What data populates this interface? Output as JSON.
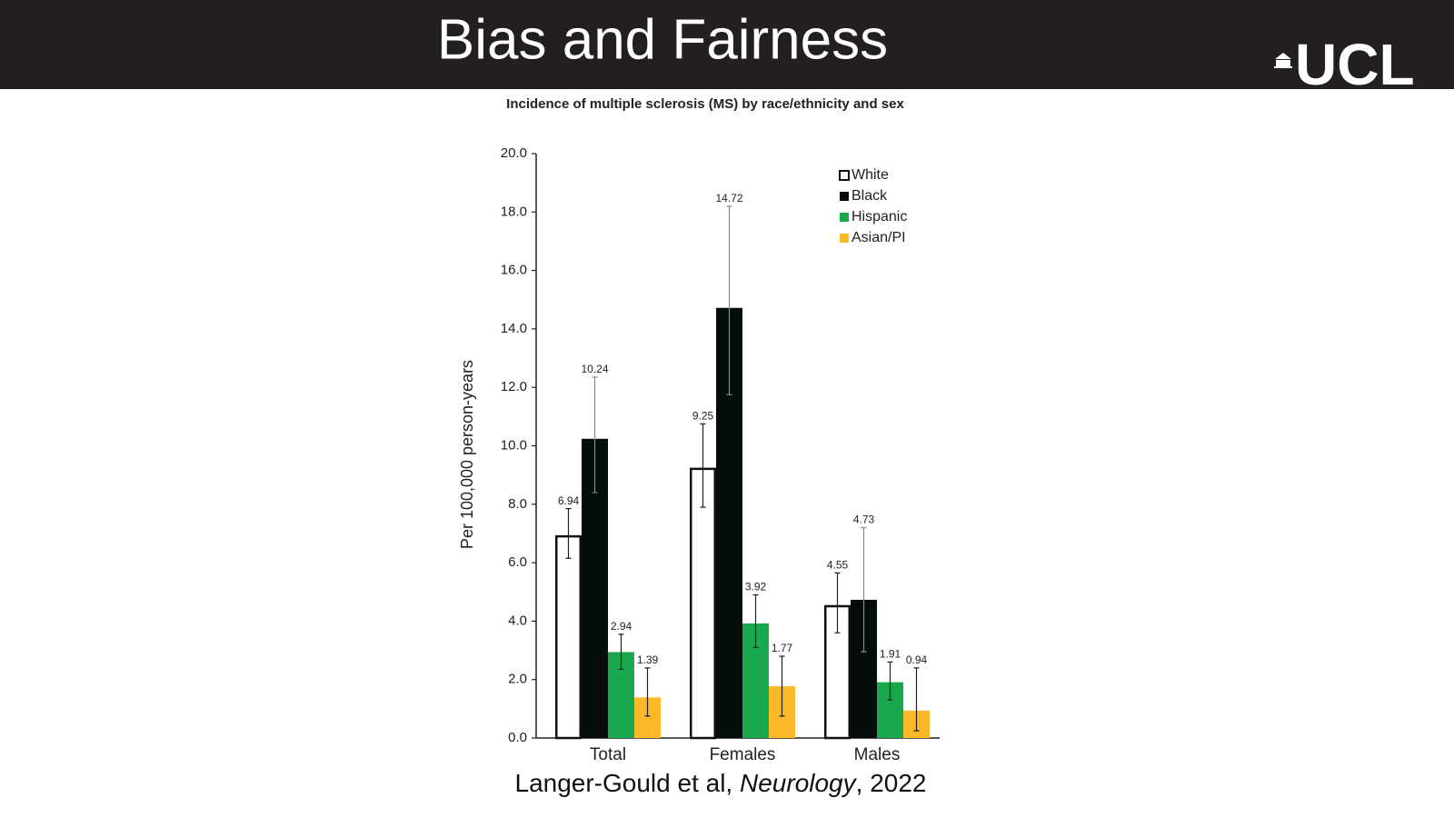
{
  "header": {
    "title": "Bias and Fairness",
    "logo": "UCL"
  },
  "citation": {
    "parts": [
      "Langer-Gould et al, ",
      "Neurology",
      ", 2022"
    ]
  },
  "chart_data": {
    "type": "bar",
    "title": "Incidence of multiple sclerosis (MS) by race/ethnicity and sex",
    "y_label": "Per 100,000 person-years",
    "categories": [
      "Total",
      "Females",
      "Males"
    ],
    "series": [
      {
        "name": "White",
        "color": "#ffffff",
        "stroke": "#111111",
        "values": [
          6.94,
          9.25,
          4.55
        ],
        "ci_low": [
          6.15,
          7.9,
          3.6
        ],
        "ci_high": [
          7.85,
          10.75,
          5.65
        ]
      },
      {
        "name": "Black",
        "color": "#050c0c",
        "values": [
          10.24,
          14.72,
          4.73
        ],
        "ci_low": [
          8.4,
          11.75,
          2.95
        ],
        "ci_high": [
          12.35,
          18.2,
          7.2
        ]
      },
      {
        "name": "Hispanic",
        "color": "#1aa84e",
        "values": [
          2.94,
          3.92,
          1.91
        ],
        "ci_low": [
          2.35,
          3.1,
          1.3
        ],
        "ci_high": [
          3.55,
          4.9,
          2.6
        ]
      },
      {
        "name": "Asian/PI",
        "color": "#fbb829",
        "values": [
          1.39,
          1.77,
          0.94
        ],
        "ci_low": [
          0.75,
          0.75,
          0.25
        ],
        "ci_high": [
          2.4,
          2.8,
          2.4
        ]
      }
    ],
    "ylim": [
      0,
      20
    ],
    "yticks": [
      {
        "value": 0,
        "label": "0.0"
      },
      {
        "value": 2,
        "label": "2.0"
      },
      {
        "value": 4,
        "label": "4.0"
      },
      {
        "value": 6,
        "label": "6.0"
      },
      {
        "value": 8,
        "label": "8.0"
      },
      {
        "value": 10,
        "label": "10.0"
      },
      {
        "value": 12,
        "label": "12.0"
      },
      {
        "value": 14,
        "label": "14.0"
      },
      {
        "value": 16,
        "label": "16.0"
      },
      {
        "value": 18,
        "label": "18.0"
      },
      {
        "value": 20,
        "label": "20.0"
      }
    ],
    "grid": false,
    "legend": "upper-right"
  }
}
